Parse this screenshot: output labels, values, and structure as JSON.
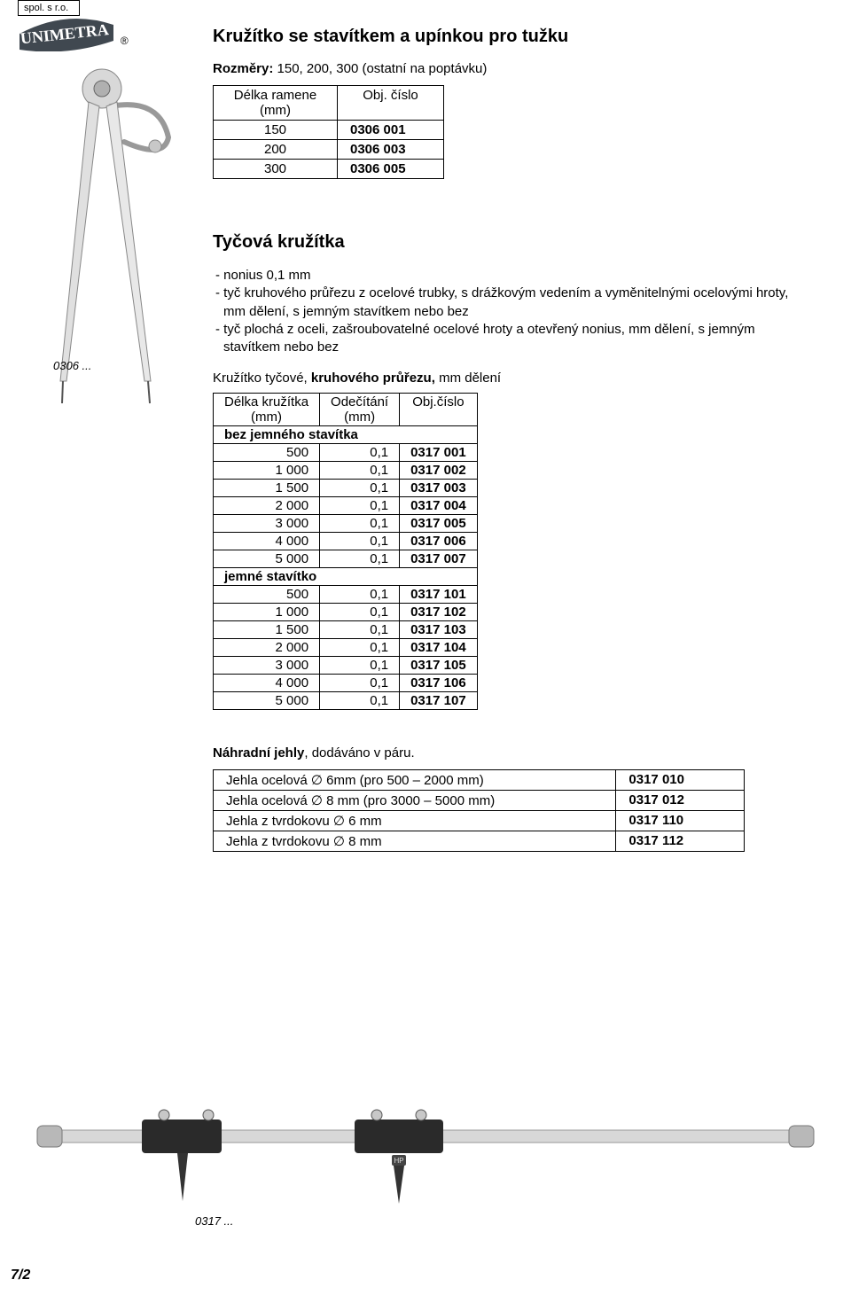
{
  "logo": {
    "company": "spol. s r.o.",
    "brand": "UNIMETRA",
    "reg": "®"
  },
  "product1": {
    "title": "Kružítko se stavítkem a upínkou pro tužku",
    "spec_label": "Rozměry:",
    "spec_value": "150, 200, 300 (ostatní na poptávku)",
    "col1": "Délka ramene\n(mm)",
    "col2": "Obj. číslo",
    "rows": [
      {
        "a": "150",
        "b": "0306 001"
      },
      {
        "a": "200",
        "b": "0306 003"
      },
      {
        "a": "300",
        "b": "0306 005"
      }
    ],
    "img_code": "0306 ..."
  },
  "product2": {
    "title": "Tyčová kružítka",
    "bullets": [
      "- nonius 0,1 mm",
      "- tyč kruhového průřezu z ocelové trubky, s drážkovým vedením a vyměnitelnými ocelovými hroty,  mm dělení, s jemným stavítkem nebo bez",
      "- tyč plochá z oceli, zašroubovatelné ocelové hroty a otevřený nonius, mm dělení, s jemným stavítkem nebo bez"
    ],
    "subhead_plain": "Kružítko tyčové, ",
    "subhead_bold": "kruhového průřezu,",
    "subhead_tail": " mm dělení",
    "col1": "Délka kružítka\n(mm)",
    "col2": "Odečítání\n(mm)",
    "col3": "Obj.číslo",
    "section1": "bez jemného stavítka",
    "rows1": [
      {
        "a": "500",
        "b": "0,1",
        "c": "0317 001"
      },
      {
        "a": "1 000",
        "b": "0,1",
        "c": "0317 002"
      },
      {
        "a": "1 500",
        "b": "0,1",
        "c": "0317 003"
      },
      {
        "a": "2 000",
        "b": "0,1",
        "c": "0317 004"
      },
      {
        "a": "3 000",
        "b": "0,1",
        "c": "0317 005"
      },
      {
        "a": "4 000",
        "b": "0,1",
        "c": "0317 006"
      },
      {
        "a": "5 000",
        "b": "0,1",
        "c": "0317 007"
      }
    ],
    "section2": "jemné stavítko",
    "rows2": [
      {
        "a": "500",
        "b": "0,1",
        "c": "0317 101"
      },
      {
        "a": "1 000",
        "b": "0,1",
        "c": "0317 102"
      },
      {
        "a": "1 500",
        "b": "0,1",
        "c": "0317 103"
      },
      {
        "a": "2 000",
        "b": "0,1",
        "c": "0317 104"
      },
      {
        "a": "3 000",
        "b": "0,1",
        "c": "0317 105"
      },
      {
        "a": "4 000",
        "b": "0,1",
        "c": "0317 106"
      },
      {
        "a": "5 000",
        "b": "0,1",
        "c": "0317 107"
      }
    ],
    "spares_title_bold": "Náhradní jehly",
    "spares_title_rest": ", dodáváno v páru.",
    "spares": [
      {
        "a": "Jehla ocelová ∅ 6mm (pro 500 – 2000 mm)",
        "b": "0317 010"
      },
      {
        "a": "Jehla ocelová ∅ 8 mm (pro 3000 – 5000 mm)",
        "b": "0317 012"
      },
      {
        "a": "Jehla z tvrdokovu ∅ 6 mm",
        "b": "0317 110"
      },
      {
        "a": "Jehla z tvrdokovu ∅ 8 mm",
        "b": "0317 112"
      }
    ],
    "img_code": "0317 ...",
    "illustration": {
      "hp_label": "HP"
    }
  },
  "page_number": "7/2"
}
